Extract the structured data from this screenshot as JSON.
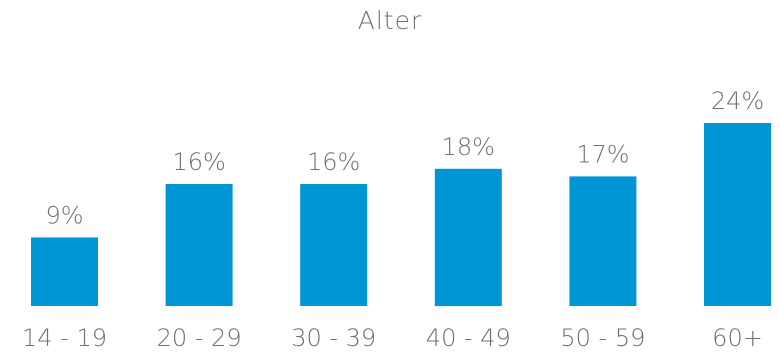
{
  "chart_data": {
    "type": "bar",
    "title": "Alter",
    "categories": [
      "14 - 19",
      "20 - 29",
      "30 - 39",
      "40 - 49",
      "50 - 59",
      "60+"
    ],
    "values": [
      9,
      16,
      16,
      18,
      17,
      24
    ],
    "value_labels": [
      "9%",
      "16%",
      "16%",
      "18%",
      "17%",
      "24%"
    ],
    "ylim": [
      0,
      24
    ],
    "grid": false,
    "legend": "none",
    "colors": {
      "bar": "#0096d6",
      "text": "#707070"
    }
  }
}
